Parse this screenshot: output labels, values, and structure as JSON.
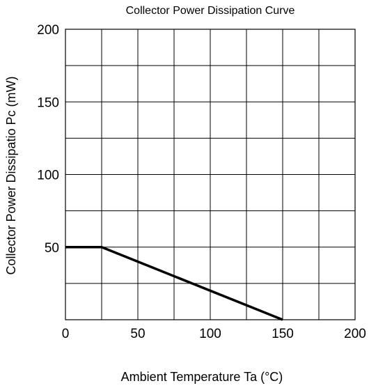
{
  "chart_data": {
    "type": "line",
    "title": "Collector Power Dissipation Curve",
    "xlabel": "Ambient Temperature    Ta (°C)",
    "ylabel": "Collector Power Dissipatio    Pc (mW)",
    "xlim": [
      0,
      200
    ],
    "ylim": [
      0,
      200
    ],
    "x_ticks": [
      0,
      50,
      100,
      150,
      200
    ],
    "x_tick_labels": [
      "0",
      "50",
      "100",
      "150",
      "200"
    ],
    "y_ticks": [
      50,
      100,
      150,
      200
    ],
    "y_tick_labels": [
      "50",
      "100",
      "150",
      "200"
    ],
    "x_grid_step": 25,
    "y_grid_step": 25,
    "grid": true,
    "series": [
      {
        "x": [
          0,
          25,
          150
        ],
        "y": [
          50,
          50,
          0
        ]
      }
    ],
    "line_color": "#000000",
    "grid_color": "#000000"
  }
}
